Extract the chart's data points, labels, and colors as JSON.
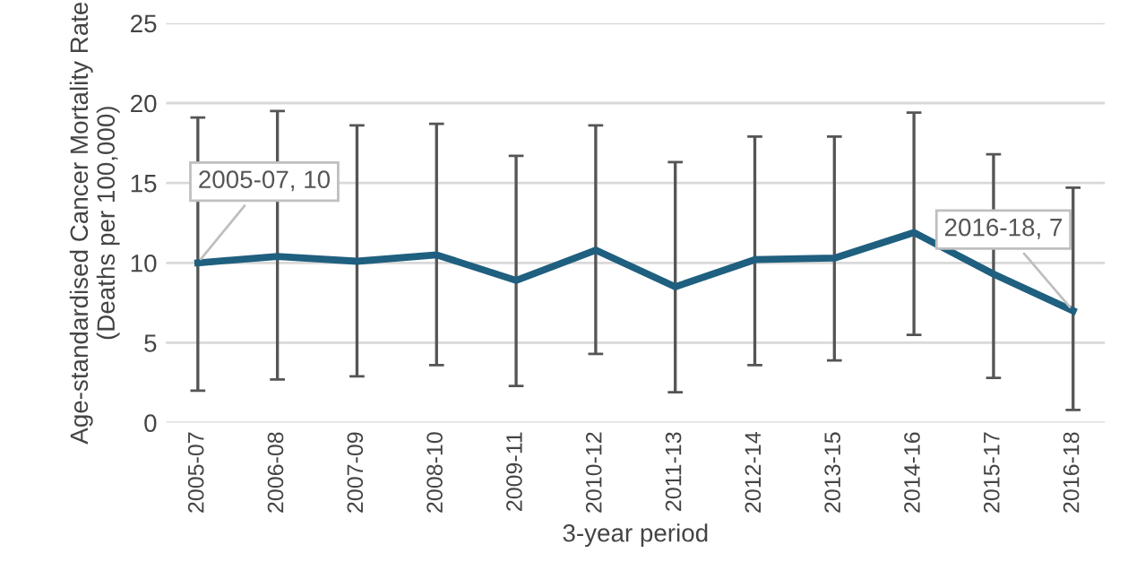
{
  "chart_data": {
    "type": "line",
    "xlabel": "3-year period",
    "ylabel": "Age-standardised Cancer Mortality Rate\n(Deaths per 100,000)",
    "categories": [
      "2005-07",
      "2006-08",
      "2007-09",
      "2008-10",
      "2009-11",
      "2010-12",
      "2011-13",
      "2012-14",
      "2013-15",
      "2014-16",
      "2015-17",
      "2016-18"
    ],
    "series": [
      {
        "color": "#1f5f7f",
        "values": [
          10,
          10.4,
          10.1,
          10.5,
          8.9,
          10.8,
          8.5,
          10.2,
          10.3,
          11.9,
          9.3,
          7
        ],
        "errors": [
          [
            2.0,
            19.1
          ],
          [
            2.7,
            19.5
          ],
          [
            2.9,
            18.6
          ],
          [
            3.6,
            18.7
          ],
          [
            2.3,
            16.7
          ],
          [
            4.3,
            18.6
          ],
          [
            1.9,
            16.3
          ],
          [
            3.6,
            17.9
          ],
          [
            3.9,
            17.9
          ],
          [
            5.5,
            19.4
          ],
          [
            2.8,
            16.8
          ],
          [
            0.8,
            14.7
          ]
        ]
      }
    ],
    "ylim": [
      0,
      25
    ],
    "yticks": [
      0,
      5,
      10,
      15,
      20,
      25
    ],
    "grid": "y",
    "legend": false,
    "marker": "none",
    "line_style": "solid",
    "annotations": [
      {
        "text": "2005-07, 10",
        "x": "2005-07",
        "y": 10
      },
      {
        "text": "2016-18, 7",
        "x": "2016-18",
        "y": 7
      }
    ]
  }
}
